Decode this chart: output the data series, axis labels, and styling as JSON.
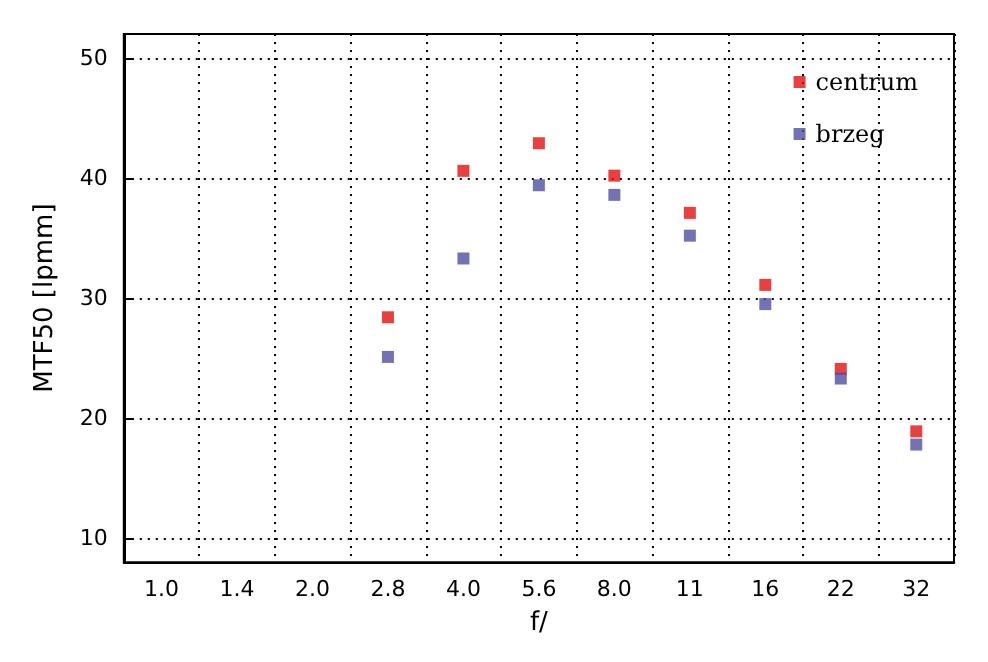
{
  "chart_data": {
    "type": "scatter",
    "xlabel": "f/",
    "ylabel": "MTF50 [lpmm]",
    "categories": [
      "1.0",
      "1.4",
      "2.0",
      "2.8",
      "4.0",
      "5.6",
      "8.0",
      "11",
      "16",
      "22",
      "32"
    ],
    "series": [
      {
        "name": "centrum",
        "color": "#e01010",
        "values": [
          null,
          null,
          null,
          28.4,
          40.6,
          42.9,
          40.2,
          37.1,
          31.1,
          24.1,
          18.9
        ]
      },
      {
        "name": "brzeg",
        "color": "#5050a0",
        "values": [
          null,
          null,
          null,
          25.1,
          33.3,
          39.4,
          38.6,
          35.2,
          29.5,
          23.3,
          17.8
        ]
      }
    ],
    "ylim": [
      8,
      52
    ],
    "yticks": [
      10,
      20,
      30,
      40,
      50
    ],
    "grid": true,
    "legend": "top right",
    "marker": "square"
  }
}
